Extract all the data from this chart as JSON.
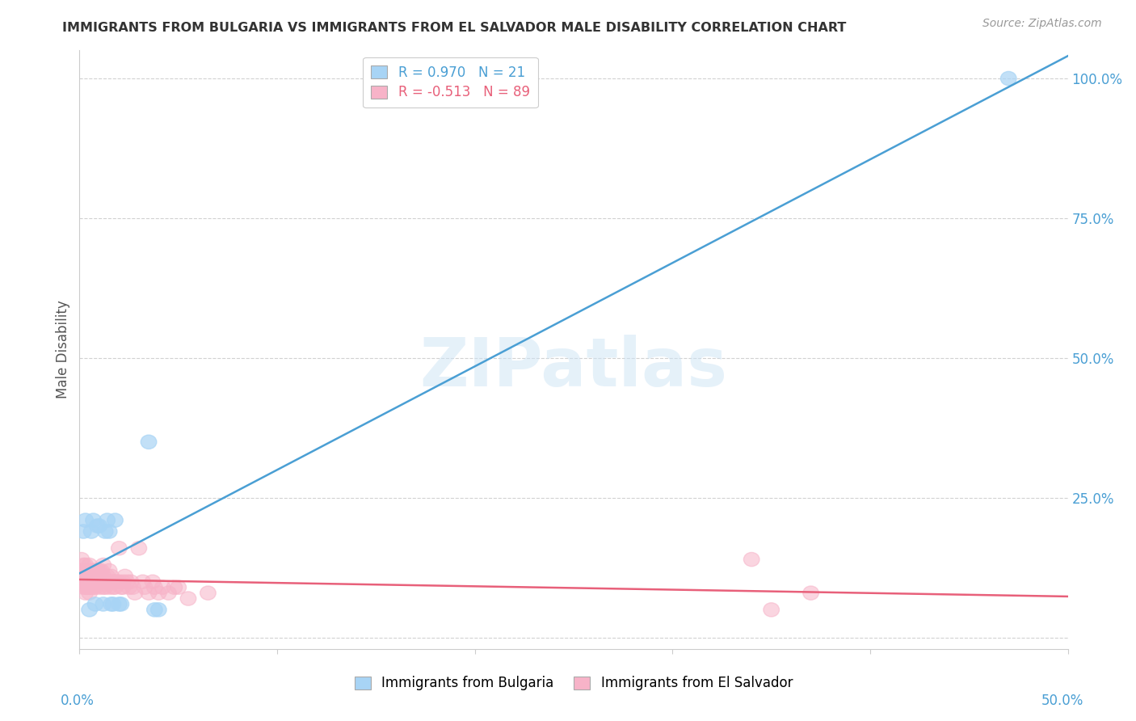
{
  "title": "IMMIGRANTS FROM BULGARIA VS IMMIGRANTS FROM EL SALVADOR MALE DISABILITY CORRELATION CHART",
  "source": "Source: ZipAtlas.com",
  "ylabel": "Male Disability",
  "watermark": "ZIPatlas",
  "legend_bulgaria_R": 0.97,
  "legend_bulgaria_N": 21,
  "legend_el_salvador_R": -0.513,
  "legend_el_salvador_N": 89,
  "bulgaria_color": "#a8d4f5",
  "el_salvador_color": "#f7b3c8",
  "line_bulgaria_color": "#4a9fd4",
  "line_el_salvador_color": "#e8607a",
  "bg_color": "#ffffff",
  "grid_color": "#cccccc",
  "title_color": "#333333",
  "axis_tick_color": "#4a9fd4",
  "ylabel_color": "#555555",
  "source_color": "#999999",
  "xlim": [
    0.0,
    0.5
  ],
  "ylim": [
    -0.02,
    1.05
  ],
  "ytick_vals": [
    0.0,
    0.25,
    0.5,
    0.75,
    1.0
  ],
  "ytick_labels": [
    "",
    "25.0%",
    "50.0%",
    "75.0%",
    "100.0%"
  ],
  "bulgaria_points": [
    [
      0.002,
      0.19
    ],
    [
      0.003,
      0.21
    ],
    [
      0.005,
      0.05
    ],
    [
      0.006,
      0.19
    ],
    [
      0.007,
      0.21
    ],
    [
      0.008,
      0.06
    ],
    [
      0.009,
      0.2
    ],
    [
      0.01,
      0.2
    ],
    [
      0.012,
      0.06
    ],
    [
      0.013,
      0.19
    ],
    [
      0.014,
      0.21
    ],
    [
      0.015,
      0.19
    ],
    [
      0.016,
      0.06
    ],
    [
      0.017,
      0.06
    ],
    [
      0.018,
      0.21
    ],
    [
      0.02,
      0.06
    ],
    [
      0.021,
      0.06
    ],
    [
      0.035,
      0.35
    ],
    [
      0.038,
      0.05
    ],
    [
      0.04,
      0.05
    ],
    [
      0.47,
      1.0
    ]
  ],
  "el_salvador_points": [
    [
      0.001,
      0.14
    ],
    [
      0.001,
      0.11
    ],
    [
      0.001,
      0.12
    ],
    [
      0.002,
      0.13
    ],
    [
      0.002,
      0.12
    ],
    [
      0.002,
      0.11
    ],
    [
      0.002,
      0.1
    ],
    [
      0.002,
      0.09
    ],
    [
      0.003,
      0.13
    ],
    [
      0.003,
      0.12
    ],
    [
      0.003,
      0.11
    ],
    [
      0.003,
      0.1
    ],
    [
      0.003,
      0.09
    ],
    [
      0.003,
      0.08
    ],
    [
      0.004,
      0.12
    ],
    [
      0.004,
      0.11
    ],
    [
      0.004,
      0.1
    ],
    [
      0.004,
      0.09
    ],
    [
      0.005,
      0.13
    ],
    [
      0.005,
      0.11
    ],
    [
      0.005,
      0.1
    ],
    [
      0.005,
      0.09
    ],
    [
      0.005,
      0.08
    ],
    [
      0.006,
      0.12
    ],
    [
      0.006,
      0.11
    ],
    [
      0.006,
      0.1
    ],
    [
      0.006,
      0.09
    ],
    [
      0.007,
      0.12
    ],
    [
      0.007,
      0.11
    ],
    [
      0.007,
      0.1
    ],
    [
      0.007,
      0.09
    ],
    [
      0.008,
      0.12
    ],
    [
      0.008,
      0.11
    ],
    [
      0.008,
      0.1
    ],
    [
      0.008,
      0.09
    ],
    [
      0.009,
      0.12
    ],
    [
      0.009,
      0.11
    ],
    [
      0.009,
      0.1
    ],
    [
      0.01,
      0.12
    ],
    [
      0.01,
      0.11
    ],
    [
      0.01,
      0.1
    ],
    [
      0.01,
      0.09
    ],
    [
      0.011,
      0.12
    ],
    [
      0.011,
      0.1
    ],
    [
      0.012,
      0.13
    ],
    [
      0.012,
      0.11
    ],
    [
      0.012,
      0.1
    ],
    [
      0.012,
      0.09
    ],
    [
      0.013,
      0.1
    ],
    [
      0.013,
      0.09
    ],
    [
      0.014,
      0.11
    ],
    [
      0.014,
      0.1
    ],
    [
      0.015,
      0.12
    ],
    [
      0.015,
      0.1
    ],
    [
      0.015,
      0.09
    ],
    [
      0.016,
      0.11
    ],
    [
      0.016,
      0.1
    ],
    [
      0.017,
      0.1
    ],
    [
      0.017,
      0.09
    ],
    [
      0.018,
      0.1
    ],
    [
      0.018,
      0.09
    ],
    [
      0.019,
      0.1
    ],
    [
      0.02,
      0.16
    ],
    [
      0.02,
      0.1
    ],
    [
      0.021,
      0.09
    ],
    [
      0.022,
      0.1
    ],
    [
      0.022,
      0.09
    ],
    [
      0.023,
      0.11
    ],
    [
      0.024,
      0.1
    ],
    [
      0.025,
      0.09
    ],
    [
      0.026,
      0.1
    ],
    [
      0.027,
      0.09
    ],
    [
      0.028,
      0.08
    ],
    [
      0.03,
      0.16
    ],
    [
      0.032,
      0.1
    ],
    [
      0.033,
      0.09
    ],
    [
      0.035,
      0.08
    ],
    [
      0.037,
      0.1
    ],
    [
      0.038,
      0.09
    ],
    [
      0.04,
      0.08
    ],
    [
      0.042,
      0.09
    ],
    [
      0.045,
      0.08
    ],
    [
      0.048,
      0.09
    ],
    [
      0.05,
      0.09
    ],
    [
      0.055,
      0.07
    ],
    [
      0.065,
      0.08
    ],
    [
      0.34,
      0.14
    ],
    [
      0.35,
      0.05
    ],
    [
      0.37,
      0.08
    ]
  ]
}
